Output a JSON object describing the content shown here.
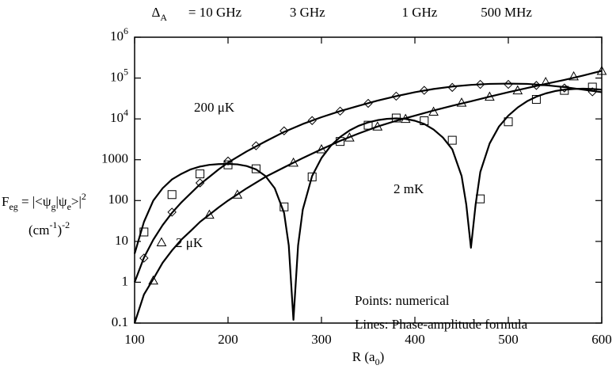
{
  "chart_data": {
    "type": "log-scatter-line",
    "x_label": [
      {
        "t": "R (a"
      },
      {
        "t": "0",
        "s": "sub"
      },
      {
        "t": ")"
      }
    ],
    "y_label": [
      [
        {
          "t": "F"
        },
        {
          "t": "eg",
          "s": "sub"
        },
        {
          "t": " = |<ψ"
        },
        {
          "t": "g",
          "s": "sub"
        },
        {
          "t": "|ψ"
        },
        {
          "t": "e",
          "s": "sub"
        },
        {
          "t": ">|"
        },
        {
          "t": "2",
          "s": "sup"
        }
      ],
      [
        {
          "t": "(cm"
        },
        {
          "t": "-1",
          "s": "sup"
        },
        {
          "t": ")"
        },
        {
          "t": "-2",
          "s": "sup"
        }
      ]
    ],
    "x2_label": [
      {
        "t": "Δ"
      },
      {
        "t": "A",
        "s": "sub"
      }
    ],
    "x2ticks": [
      {
        "value": 186,
        "label": "= 10 GHz"
      },
      {
        "value": 285,
        "label": "3 GHz"
      },
      {
        "value": 405,
        "label": "1 GHz"
      },
      {
        "value": 498,
        "label": "500 MHz"
      }
    ],
    "xlim": [
      100,
      600
    ],
    "xticks": [
      100,
      200,
      300,
      400,
      500,
      600
    ],
    "ylim": [
      0.1,
      1000000
    ],
    "log_y": true,
    "yticks": [
      0.1,
      1,
      10,
      100,
      1000,
      {
        "value": 10000,
        "label": "10",
        "sup": "4"
      },
      {
        "value": 100000,
        "label": "10",
        "sup": "5"
      },
      {
        "value": 1000000,
        "label": "10",
        "sup": "6"
      }
    ],
    "annotations": [
      "Points: numerical",
      "Lines: Phase-amplitude formula"
    ],
    "series": [
      {
        "name": "200 μK",
        "marker": "diamond",
        "color": "#000000",
        "x": [
          110,
          140,
          170,
          200,
          230,
          260,
          290,
          320,
          350,
          380,
          410,
          440,
          470,
          500,
          530,
          560,
          590
        ],
        "values": [
          3.9,
          52,
          270,
          930,
          2200,
          5100,
          9100,
          15500,
          24000,
          36000,
          50000,
          59000,
          70000,
          70000,
          66000,
          57000,
          46000
        ],
        "line_x": [
          100,
          110,
          120,
          130,
          140,
          150,
          160,
          170,
          180,
          190,
          200,
          220,
          240,
          260,
          280,
          300,
          320,
          340,
          360,
          380,
          400,
          420,
          440,
          460,
          480,
          500,
          520,
          540,
          560,
          580,
          600
        ],
        "line_values": [
          1,
          4,
          11,
          25,
          50,
          90,
          150,
          250,
          380,
          580,
          850,
          1600,
          2800,
          4800,
          7500,
          11000,
          15500,
          21000,
          28000,
          36000,
          45000,
          54000,
          62000,
          68000,
          72000,
          73000,
          72000,
          67000,
          60000,
          52000,
          45000
        ]
      },
      {
        "name": "2 μK",
        "marker": "triangle",
        "color": "#000000",
        "x": [
          120,
          180,
          210,
          270,
          300,
          330,
          360,
          390,
          420,
          450,
          480,
          510,
          540,
          570,
          600
        ],
        "values": [
          1.1,
          45,
          140,
          850,
          1800,
          3500,
          6500,
          10000,
          15000,
          25000,
          35000,
          50000,
          80000,
          110000,
          150000
        ],
        "line_x": [
          100,
          110,
          120,
          130,
          140,
          150,
          160,
          170,
          180,
          190,
          200,
          220,
          240,
          260,
          280,
          300,
          320,
          340,
          360,
          380,
          400,
          420,
          440,
          460,
          480,
          500,
          520,
          540,
          560,
          580,
          600
        ],
        "line_values": [
          0.1,
          0.5,
          1.2,
          3,
          6,
          11,
          18,
          30,
          45,
          68,
          100,
          200,
          380,
          650,
          1100,
          1800,
          2900,
          4400,
          6500,
          9000,
          12000,
          16000,
          21000,
          27000,
          35000,
          45000,
          57000,
          72000,
          90000,
          115000,
          150000
        ]
      },
      {
        "name": "2 mK",
        "marker": "square",
        "color": "#000000",
        "x": [
          110,
          140,
          170,
          200,
          230,
          260,
          290,
          320,
          350,
          380,
          410,
          440,
          470,
          500,
          530,
          560,
          590
        ],
        "values": [
          17,
          140,
          450,
          750,
          600,
          70,
          380,
          2800,
          7000,
          10500,
          9000,
          3000,
          110,
          8500,
          30000,
          50000,
          60000
        ],
        "line_x": [
          100,
          110,
          120,
          130,
          140,
          150,
          160,
          170,
          180,
          190,
          200,
          210,
          220,
          230,
          240,
          250,
          260,
          265,
          270,
          275,
          280,
          290,
          300,
          310,
          320,
          330,
          340,
          350,
          360,
          370,
          380,
          390,
          400,
          410,
          420,
          430,
          440,
          450,
          455,
          460,
          465,
          470,
          480,
          490,
          500,
          510,
          520,
          530,
          540,
          550,
          560,
          570,
          580,
          590,
          600
        ],
        "line_values": [
          5,
          30,
          100,
          200,
          330,
          450,
          580,
          680,
          750,
          780,
          790,
          770,
          700,
          580,
          400,
          200,
          50,
          8,
          0.12,
          8,
          60,
          400,
          1100,
          2200,
          3600,
          5200,
          6800,
          8200,
          9300,
          10000,
          10300,
          10000,
          9000,
          7500,
          5500,
          3500,
          1800,
          400,
          80,
          7,
          80,
          500,
          2500,
          6500,
          12000,
          19000,
          27000,
          35000,
          42000,
          48000,
          52000,
          54000,
          55000,
          54000,
          52000
        ]
      }
    ]
  }
}
